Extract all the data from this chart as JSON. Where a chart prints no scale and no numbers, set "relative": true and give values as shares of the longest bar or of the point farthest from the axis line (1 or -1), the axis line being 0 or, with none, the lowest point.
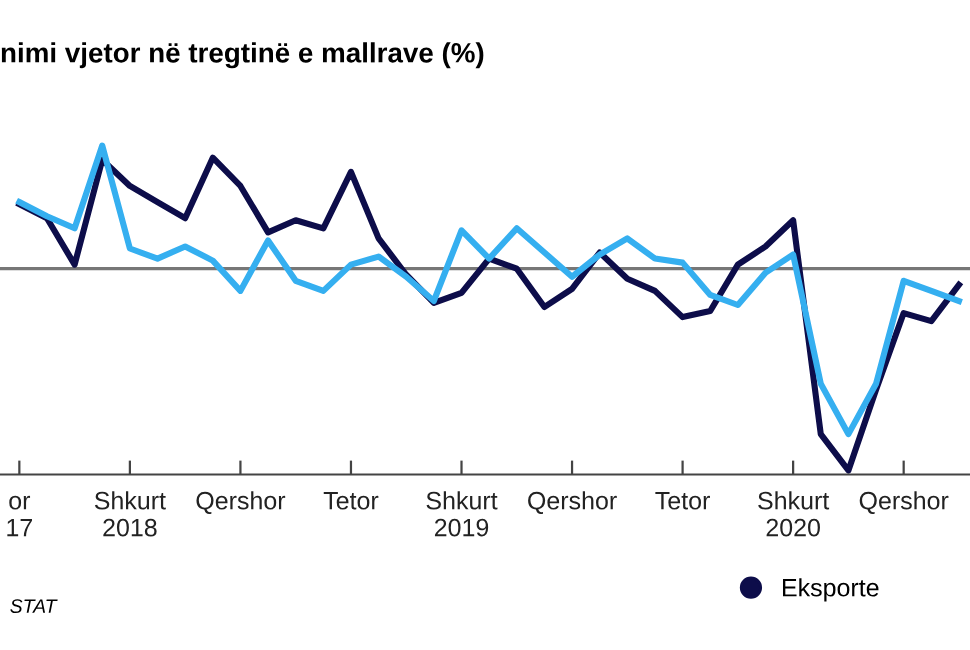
{
  "chart_data": {
    "type": "line",
    "title": "nimi vjetor në tregtinë e mallrave (%)",
    "relative": true,
    "categories": [
      "or\n17",
      null,
      null,
      null,
      "Shkurt\n2018",
      null,
      null,
      null,
      "Qershor",
      null,
      null,
      null,
      "Tetor",
      null,
      null,
      null,
      "Shkurt\n2019",
      null,
      null,
      null,
      "Qershor",
      null,
      null,
      null,
      "Tetor",
      null,
      null,
      null,
      "Shkurt\n2020",
      null,
      null,
      null,
      "Qershor",
      null,
      null
    ],
    "series": [
      {
        "name": "Eksporte",
        "color": "#0d0d4a",
        "values": [
          0.32,
          0.25,
          0.02,
          0.54,
          0.41,
          0.33,
          0.25,
          0.55,
          0.41,
          0.18,
          0.24,
          0.2,
          0.48,
          0.15,
          -0.03,
          -0.17,
          -0.12,
          0.05,
          0,
          -0.19,
          -0.1,
          0.08,
          -0.05,
          -0.11,
          -0.24,
          -0.21,
          0.02,
          0.11,
          0.24,
          -0.82,
          -1,
          -0.6,
          -0.22,
          -0.26,
          -0.08
        ]
      },
      {
        "color": "#35aff0",
        "values": [
          0.33,
          0.26,
          0.2,
          0.61,
          0.1,
          0.05,
          0.11,
          0.04,
          -0.11,
          0.14,
          -0.06,
          -0.11,
          0.02,
          0.06,
          -0.04,
          -0.16,
          0.19,
          0.05,
          0.2,
          0.08,
          -0.04,
          0.07,
          0.15,
          0.05,
          0.03,
          -0.13,
          -0.18,
          -0.02,
          0.07,
          -0.57,
          -0.82,
          -0.57,
          -0.06,
          -0.11,
          -0.16
        ]
      }
    ],
    "legend": "bottom right",
    "marker": "none",
    "line_style": "solid",
    "annotations": [
      "STAT"
    ]
  }
}
